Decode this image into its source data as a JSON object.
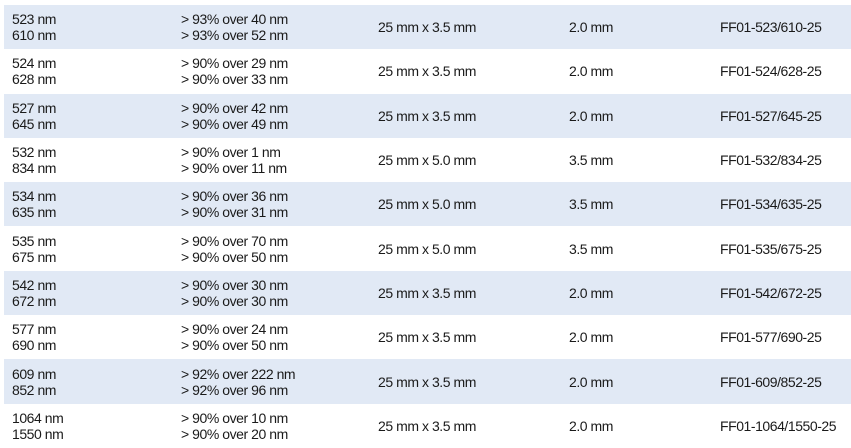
{
  "rows": [
    {
      "wl1": "523 nm",
      "wl2": "610 nm",
      "t1": "> 93% over 40 nm",
      "t2": "> 93% over 52 nm",
      "size": "25 mm x 3.5 mm",
      "thick": "2.0 mm",
      "part": "FF01-523/610-25"
    },
    {
      "wl1": "524 nm",
      "wl2": "628 nm",
      "t1": "> 90% over 29 nm",
      "t2": "> 90% over 33 nm",
      "size": "25 mm x 3.5 mm",
      "thick": "2.0 mm",
      "part": "FF01-524/628-25"
    },
    {
      "wl1": "527 nm",
      "wl2": "645 nm",
      "t1": "> 90% over 42 nm",
      "t2": "> 90% over 49 nm",
      "size": "25 mm x 3.5 mm",
      "thick": "2.0 mm",
      "part": "FF01-527/645-25"
    },
    {
      "wl1": "532 nm",
      "wl2": "834 nm",
      "t1": "> 90% over 1 nm",
      "t2": "> 90% over 11 nm",
      "size": "25 mm x 5.0 mm",
      "thick": "3.5 mm",
      "part": "FF01-532/834-25"
    },
    {
      "wl1": "534 nm",
      "wl2": "635 nm",
      "t1": "> 90% over 36 nm",
      "t2": "> 90% over 31 nm",
      "size": "25 mm x 5.0 mm",
      "thick": "3.5 mm",
      "part": "FF01-534/635-25"
    },
    {
      "wl1": "535 nm",
      "wl2": "675 nm",
      "t1": "> 90% over 70 nm",
      "t2": "> 90% over 50 nm",
      "size": "25 mm x 5.0 mm",
      "thick": "3.5 mm",
      "part": "FF01-535/675-25"
    },
    {
      "wl1": "542 nm",
      "wl2": "672 nm",
      "t1": "> 90% over 30 nm",
      "t2": "> 90% over 30 nm",
      "size": "25 mm x 3.5 mm",
      "thick": "2.0 mm",
      "part": "FF01-542/672-25"
    },
    {
      "wl1": "577 nm",
      "wl2": "690 nm",
      "t1": "> 90% over 24 nm",
      "t2": "> 90% over 50 nm",
      "size": "25 mm x 3.5 mm",
      "thick": "2.0 mm",
      "part": "FF01-577/690-25"
    },
    {
      "wl1": "609 nm",
      "wl2": "852 nm",
      "t1": "> 92% over 222 nm",
      "t2": "> 92% over 96 nm",
      "size": "25 mm x 3.5 mm",
      "thick": "2.0 mm",
      "part": "FF01-609/852-25"
    },
    {
      "wl1": "1064 nm",
      "wl2": "1550 nm",
      "t1": "> 90% over 10 nm",
      "t2": "> 90% over 20 nm",
      "size": "25 mm x 3.5 mm",
      "thick": "2.0 mm",
      "part": "FF01-1064/1550-25"
    }
  ],
  "colors": {
    "stripe": "#e1e9f5",
    "text": "#1a1a1a"
  }
}
